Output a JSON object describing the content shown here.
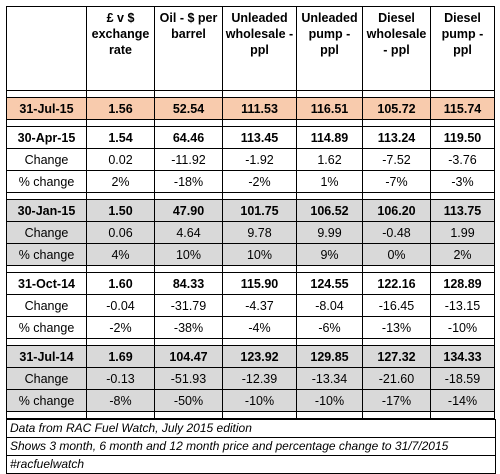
{
  "headers": [
    "",
    "£ v $ exchange rate",
    "Oil - $ per barrel",
    "Unleaded wholesale - ppl",
    "Unleaded pump - ppl",
    "Diesel wholesale - ppl",
    "Diesel pump - ppl"
  ],
  "current": {
    "label": "31-Jul-15",
    "values": [
      "1.56",
      "52.54",
      "111.53",
      "116.51",
      "105.72",
      "115.74"
    ]
  },
  "groups": [
    {
      "date": "30-Apr-15",
      "values": [
        "1.54",
        "64.46",
        "113.45",
        "114.89",
        "113.24",
        "119.50"
      ],
      "change_label": "Change",
      "change": [
        "0.02",
        "-11.92",
        "-1.92",
        "1.62",
        "-7.52",
        "-3.76"
      ],
      "pct_label": "% change",
      "pct": [
        "2%",
        "-18%",
        "-2%",
        "1%",
        "-7%",
        "-3%"
      ]
    },
    {
      "date": "30-Jan-15",
      "values": [
        "1.50",
        "47.90",
        "101.75",
        "106.52",
        "106.20",
        "113.75"
      ],
      "change_label": "Change",
      "change": [
        "0.06",
        "4.64",
        "9.78",
        "9.99",
        "-0.48",
        "1.99"
      ],
      "pct_label": "% change",
      "pct": [
        "4%",
        "10%",
        "10%",
        "9%",
        "0%",
        "2%"
      ]
    },
    {
      "date": "31-Oct-14",
      "values": [
        "1.60",
        "84.33",
        "115.90",
        "124.55",
        "122.16",
        "128.89"
      ],
      "change_label": "Change",
      "change": [
        "-0.04",
        "-31.79",
        "-4.37",
        "-8.04",
        "-16.45",
        "-13.15"
      ],
      "pct_label": "% change",
      "pct": [
        "-2%",
        "-38%",
        "-4%",
        "-6%",
        "-13%",
        "-10%"
      ]
    },
    {
      "date": "31-Jul-14",
      "values": [
        "1.69",
        "104.47",
        "123.92",
        "129.85",
        "127.32",
        "134.33"
      ],
      "change_label": "Change",
      "change": [
        "-0.13",
        "-51.93",
        "-12.39",
        "-13.34",
        "-21.60",
        "-18.59"
      ],
      "pct_label": "% change",
      "pct": [
        "-8%",
        "-50%",
        "-10%",
        "-10%",
        "-17%",
        "-14%"
      ]
    }
  ],
  "notes": [
    "Data from RAC Fuel Watch, July 2015 edition",
    "Shows 3 month, 6 month and 12 month price and percentage change to 31/7/2015",
    "#racfuelwatch"
  ]
}
